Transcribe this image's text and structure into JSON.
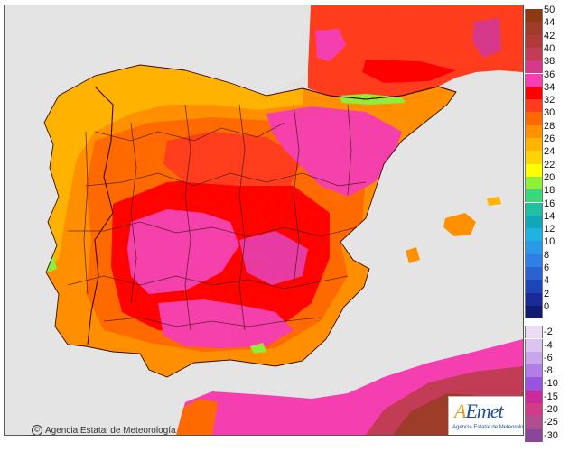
{
  "map": {
    "credit_text": "Agencia Estatal de Meteorología",
    "credit_icon": "copyright-icon",
    "logo_text": "AEmet",
    "logo_subtitle": "Agencia Estatal de Meteorología",
    "sea_color": "#e4e4e4",
    "border_color": "#4a1a1a"
  },
  "legend": {
    "positive_steps": [
      {
        "label": "50",
        "color": "#8b3a14"
      },
      {
        "label": "44",
        "color": "#9e3c2a"
      },
      {
        "label": "42",
        "color": "#b03a3a"
      },
      {
        "label": "40",
        "color": "#c23c55"
      },
      {
        "label": "38",
        "color": "#d6398a"
      },
      {
        "label": "36",
        "color": "#f53fb0"
      },
      {
        "label": "34",
        "color": "#ff0000"
      },
      {
        "label": "32",
        "color": "#ff3c1e"
      },
      {
        "label": "30",
        "color": "#ff6a00"
      },
      {
        "label": "28",
        "color": "#ff9000"
      },
      {
        "label": "26",
        "color": "#ffb400"
      },
      {
        "label": "24",
        "color": "#ffd400"
      },
      {
        "label": "22",
        "color": "#ffff00"
      },
      {
        "label": "20",
        "color": "#8ef03a"
      },
      {
        "label": "18",
        "color": "#3ad87a"
      },
      {
        "label": "16",
        "color": "#20c0a0"
      },
      {
        "label": "14",
        "color": "#10a8b8"
      },
      {
        "label": "12",
        "color": "#1fb4e0"
      },
      {
        "label": "10",
        "color": "#2a9ae8"
      },
      {
        "label": "8",
        "color": "#2f7fe6"
      },
      {
        "label": "6",
        "color": "#2a62d4"
      },
      {
        "label": "4",
        "color": "#1f44b8"
      },
      {
        "label": "2",
        "color": "#1a2a96"
      },
      {
        "label": "0",
        "color": "#121a70"
      }
    ],
    "negative_steps": [
      {
        "label": "-2",
        "color": "#ecdcf6"
      },
      {
        "label": "-4",
        "color": "#dcc4f0"
      },
      {
        "label": "-6",
        "color": "#c8a6ec"
      },
      {
        "label": "-8",
        "color": "#b07ee6"
      },
      {
        "label": "-10",
        "color": "#9a54e0"
      },
      {
        "label": "-15",
        "color": "#cc2a9a"
      },
      {
        "label": "-20",
        "color": "#d23c86"
      },
      {
        "label": "-25",
        "color": "#b04e92"
      },
      {
        "label": "-30",
        "color": "#8a4698"
      }
    ]
  }
}
